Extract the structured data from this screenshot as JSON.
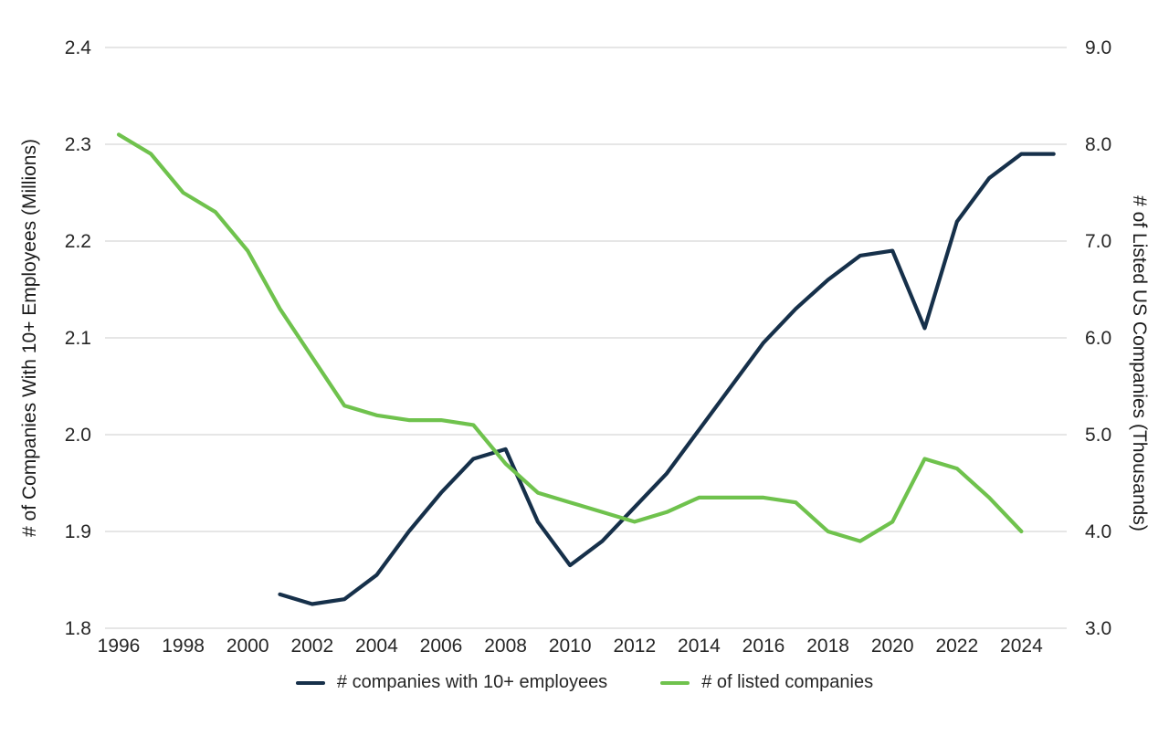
{
  "chart_data": {
    "type": "line",
    "title": "",
    "grid": "horizontal",
    "legend_position": "bottom",
    "left_axis": {
      "label": "# of Companies With 10+ Employees (Millions)",
      "min": 1.8,
      "max": 2.4,
      "tick_labels": [
        "1.8",
        "1.9",
        "2.0",
        "2.1",
        "2.2",
        "2.3",
        "2.4"
      ],
      "tick_values": [
        1.8,
        1.9,
        2.0,
        2.1,
        2.2,
        2.3,
        2.4
      ]
    },
    "right_axis": {
      "label": "# of Listed US Companies (Thousands)",
      "min": 3.0,
      "max": 9.0,
      "tick_labels": [
        "3.0",
        "4.0",
        "5.0",
        "6.0",
        "7.0",
        "8.0",
        "9.0"
      ],
      "tick_values": [
        3.0,
        4.0,
        5.0,
        6.0,
        7.0,
        8.0,
        9.0
      ]
    },
    "x_axis": {
      "tick_labels": [
        "1996",
        "1998",
        "2000",
        "2002",
        "2004",
        "2006",
        "2008",
        "2010",
        "2012",
        "2014",
        "2016",
        "2018",
        "2020",
        "2022",
        "2024"
      ],
      "tick_years": [
        1996,
        1998,
        2000,
        2002,
        2004,
        2006,
        2008,
        2010,
        2012,
        2014,
        2016,
        2018,
        2020,
        2022,
        2024
      ]
    },
    "series": [
      {
        "name": "# companies with 10+ employees",
        "axis": "left",
        "color": "#16304a",
        "years": [
          2001,
          2002,
          2003,
          2004,
          2005,
          2006,
          2007,
          2008,
          2009,
          2010,
          2011,
          2012,
          2013,
          2014,
          2015,
          2016,
          2017,
          2018,
          2019,
          2020,
          2021,
          2022,
          2023,
          2024,
          2025
        ],
        "values": [
          1.835,
          1.825,
          1.83,
          1.855,
          1.9,
          1.94,
          1.975,
          1.985,
          1.91,
          1.865,
          1.89,
          1.925,
          1.96,
          2.005,
          2.05,
          2.095,
          2.13,
          2.16,
          2.185,
          2.19,
          2.11,
          2.22,
          2.265,
          2.29,
          2.29
        ]
      },
      {
        "name": "# of listed companies",
        "axis": "right",
        "color": "#6fc24d",
        "years": [
          1996,
          1997,
          1998,
          1999,
          2000,
          2001,
          2002,
          2003,
          2004,
          2005,
          2006,
          2007,
          2008,
          2009,
          2010,
          2011,
          2012,
          2013,
          2014,
          2015,
          2016,
          2017,
          2018,
          2019,
          2020,
          2021,
          2022,
          2023,
          2024
        ],
        "values": [
          8.1,
          7.9,
          7.5,
          7.3,
          6.9,
          6.3,
          5.8,
          5.3,
          5.2,
          5.15,
          5.15,
          5.1,
          4.7,
          4.4,
          4.3,
          4.2,
          4.1,
          4.2,
          4.35,
          4.35,
          4.35,
          4.3,
          4.0,
          3.9,
          4.1,
          4.75,
          4.65,
          4.35,
          4.0
        ]
      }
    ],
    "gridline_color": "#d8d8d8"
  }
}
